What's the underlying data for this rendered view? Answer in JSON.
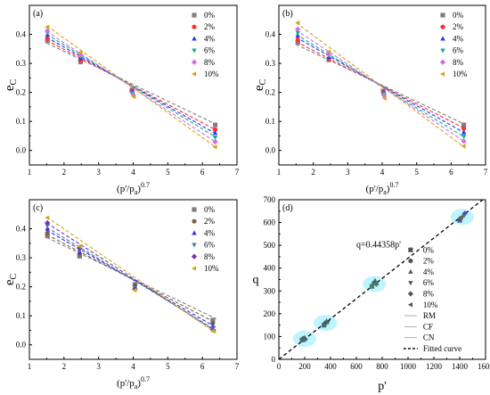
{
  "chart_data": [
    {
      "type": "scatter",
      "panel_label": "(a)",
      "xlabel_base": "(p'/p",
      "xlabel_sub": "a",
      "xlabel_close": ")",
      "xlabel_sup": "0.7",
      "ylabel_base": "e",
      "ylabel_sub": "C",
      "xlim": [
        1,
        7
      ],
      "ylim": [
        -0.05,
        0.5
      ],
      "xticks": [
        1,
        2,
        3,
        4,
        5,
        6,
        7
      ],
      "yticks": [
        0.0,
        0.1,
        0.2,
        0.3,
        0.4
      ],
      "legend_placement": "top-right",
      "series": [
        {
          "name": "0%",
          "marker": "square",
          "color": "#808080",
          "x": [
            1.52,
            2.48,
            3.96,
            6.37
          ],
          "y": [
            0.378,
            0.305,
            0.208,
            0.088
          ],
          "fit_x": [
            1.5,
            6.4
          ],
          "fit_y": [
            0.37,
            0.09
          ]
        },
        {
          "name": "2%",
          "marker": "circle",
          "color": "#ff3030",
          "x": [
            1.52,
            2.48,
            3.97,
            6.37
          ],
          "y": [
            0.385,
            0.31,
            0.205,
            0.072
          ],
          "fit_x": [
            1.5,
            6.4
          ],
          "fit_y": [
            0.38,
            0.07
          ]
        },
        {
          "name": "4%",
          "marker": "triangle-up",
          "color": "#3030ff",
          "x": [
            1.52,
            2.48,
            3.98,
            6.37
          ],
          "y": [
            0.398,
            0.318,
            0.203,
            0.06
          ],
          "fit_x": [
            1.5,
            6.4
          ],
          "fit_y": [
            0.39,
            0.057
          ]
        },
        {
          "name": "6%",
          "marker": "triangle-down",
          "color": "#10b090",
          "x": [
            1.52,
            2.48,
            3.98,
            6.37
          ],
          "y": [
            0.405,
            0.325,
            0.198,
            0.045
          ],
          "fit_x": [
            1.5,
            6.4
          ],
          "fit_y": [
            0.4,
            0.045
          ]
        },
        {
          "name": "8%",
          "marker": "diamond",
          "color": "#d070e0",
          "x": [
            1.52,
            2.48,
            4.0,
            6.37
          ],
          "y": [
            0.412,
            0.33,
            0.192,
            0.03
          ],
          "fit_x": [
            1.5,
            6.4
          ],
          "fit_y": [
            0.41,
            0.028
          ]
        },
        {
          "name": "10%",
          "marker": "triangle-left",
          "color": "#e0a020",
          "x": [
            1.52,
            2.48,
            4.02,
            6.37
          ],
          "y": [
            0.425,
            0.338,
            0.185,
            0.012
          ],
          "fit_x": [
            1.5,
            6.4
          ],
          "fit_y": [
            0.43,
            0.01
          ]
        }
      ]
    },
    {
      "type": "scatter",
      "panel_label": "(b)",
      "xlabel_base": "(p'/p",
      "xlabel_sub": "a",
      "xlabel_close": ")",
      "xlabel_sup": "0.7",
      "ylabel_base": "e",
      "ylabel_sub": "C",
      "xlim": [
        1,
        7
      ],
      "ylim": [
        -0.05,
        0.5
      ],
      "xticks": [
        1,
        2,
        3,
        4,
        5,
        6,
        7
      ],
      "yticks": [
        0.0,
        0.1,
        0.2,
        0.3,
        0.4
      ],
      "legend_placement": "top-right",
      "series": [
        {
          "name": "0%",
          "marker": "square",
          "color": "#808080",
          "x": [
            1.55,
            2.45,
            4.03,
            6.37
          ],
          "y": [
            0.372,
            0.312,
            0.205,
            0.088
          ],
          "fit_x": [
            1.5,
            6.4
          ],
          "fit_y": [
            0.365,
            0.09
          ]
        },
        {
          "name": "2%",
          "marker": "circle",
          "color": "#ff3030",
          "x": [
            1.55,
            2.45,
            4.03,
            6.37
          ],
          "y": [
            0.38,
            0.316,
            0.202,
            0.076
          ],
          "fit_x": [
            1.5,
            6.4
          ],
          "fit_y": [
            0.375,
            0.075
          ]
        },
        {
          "name": "4%",
          "marker": "triangle-up",
          "color": "#3030ff",
          "x": [
            1.55,
            2.45,
            4.05,
            6.37
          ],
          "y": [
            0.395,
            0.322,
            0.2,
            0.062
          ],
          "fit_x": [
            1.5,
            6.4
          ],
          "fit_y": [
            0.39,
            0.06
          ]
        },
        {
          "name": "6%",
          "marker": "triangle-down",
          "color": "#10b090",
          "x": [
            1.55,
            2.45,
            4.05,
            6.37
          ],
          "y": [
            0.405,
            0.328,
            0.196,
            0.048
          ],
          "fit_x": [
            1.5,
            6.4
          ],
          "fit_y": [
            0.4,
            0.045
          ]
        },
        {
          "name": "8%",
          "marker": "diamond",
          "color": "#d070e0",
          "x": [
            1.55,
            2.45,
            4.05,
            6.37
          ],
          "y": [
            0.418,
            0.333,
            0.19,
            0.032
          ],
          "fit_x": [
            1.5,
            6.4
          ],
          "fit_y": [
            0.415,
            0.03
          ]
        },
        {
          "name": "10%",
          "marker": "triangle-left",
          "color": "#e0a020",
          "x": [
            1.55,
            2.45,
            4.07,
            6.37
          ],
          "y": [
            0.44,
            0.34,
            0.18,
            0.015
          ],
          "fit_x": [
            1.5,
            6.4
          ],
          "fit_y": [
            0.44,
            0.01
          ]
        }
      ]
    },
    {
      "type": "scatter",
      "panel_label": "(c)",
      "xlabel_base": "(p'/p",
      "xlabel_sub": "a",
      "xlabel_close": ")",
      "xlabel_sup": "0.7",
      "ylabel_base": "e",
      "ylabel_sub": "C",
      "xlim": [
        1,
        7
      ],
      "ylim": [
        -0.05,
        0.5
      ],
      "xticks": [
        1,
        2,
        3,
        4,
        5,
        6,
        7
      ],
      "yticks": [
        0.0,
        0.1,
        0.2,
        0.3,
        0.4
      ],
      "legend_placement": "top-right",
      "series": [
        {
          "name": "0%",
          "marker": "square",
          "color": "#808080",
          "x": [
            1.52,
            2.45,
            4.05,
            6.3
          ],
          "y": [
            0.375,
            0.305,
            0.208,
            0.085
          ],
          "fit_x": [
            1.5,
            6.4
          ],
          "fit_y": [
            0.37,
            0.09
          ]
        },
        {
          "name": "2%",
          "marker": "circle",
          "color": "#806040",
          "x": [
            1.52,
            2.45,
            4.05,
            6.3
          ],
          "y": [
            0.385,
            0.312,
            0.205,
            0.075
          ],
          "fit_x": [
            1.5,
            6.4
          ],
          "fit_y": [
            0.38,
            0.075
          ]
        },
        {
          "name": "4%",
          "marker": "triangle-up",
          "color": "#3030ff",
          "x": [
            1.52,
            2.45,
            4.05,
            6.3
          ],
          "y": [
            0.4,
            0.32,
            0.2,
            0.065
          ],
          "fit_x": [
            1.5,
            6.4
          ],
          "fit_y": [
            0.395,
            0.06
          ]
        },
        {
          "name": "6%",
          "marker": "triangle-down",
          "color": "#3a8a9a",
          "x": [
            1.52,
            2.45,
            4.05,
            6.3
          ],
          "y": [
            0.41,
            0.326,
            0.197,
            0.058
          ],
          "fit_x": [
            1.5,
            6.4
          ],
          "fit_y": [
            0.405,
            0.05
          ]
        },
        {
          "name": "8%",
          "marker": "diamond",
          "color": "#8030b0",
          "x": [
            1.52,
            2.45,
            4.05,
            6.3
          ],
          "y": [
            0.42,
            0.333,
            0.192,
            0.052
          ],
          "fit_x": [
            1.5,
            6.4
          ],
          "fit_y": [
            0.42,
            0.045
          ]
        },
        {
          "name": "10%",
          "marker": "triangle-left",
          "color": "#c0b020",
          "x": [
            1.52,
            2.45,
            4.05,
            6.3
          ],
          "y": [
            0.438,
            0.34,
            0.188,
            0.048
          ],
          "fit_x": [
            1.5,
            6.4
          ],
          "fit_y": [
            0.44,
            0.04
          ]
        }
      ]
    },
    {
      "type": "scatter",
      "panel_label": "(d)",
      "xlabel": "p'",
      "ylabel": "q",
      "xlim": [
        0,
        1600
      ],
      "ylim": [
        0,
        700
      ],
      "xticks": [
        0,
        200,
        400,
        600,
        800,
        1000,
        1200,
        1400,
        1600
      ],
      "yticks": [
        0,
        100,
        200,
        300,
        400,
        500,
        600,
        700
      ],
      "annotation": "q=0.44358p'",
      "fit": {
        "name": "Fitted curve",
        "slope": 0.44358,
        "x": [
          0,
          1600
        ]
      },
      "highlight_color": "#a8f0ff",
      "highlight_regions": [
        [
          200,
          90
        ],
        [
          360,
          160
        ],
        [
          740,
          330
        ],
        [
          1420,
          625
        ]
      ],
      "series": [
        {
          "name": "0%",
          "marker": "square"
        },
        {
          "name": "2%",
          "marker": "circle"
        },
        {
          "name": "4%",
          "marker": "triangle-up"
        },
        {
          "name": "6%",
          "marker": "triangle-down"
        },
        {
          "name": "8%",
          "marker": "diamond"
        },
        {
          "name": "10%",
          "marker": "triangle-left"
        },
        {
          "name": "RM",
          "marker": "line"
        },
        {
          "name": "CF",
          "marker": "line"
        },
        {
          "name": "CN",
          "marker": "line"
        }
      ],
      "points": [
        {
          "x": 180,
          "y": 85,
          "marker": "square",
          "color": "#4a6a6a"
        },
        {
          "x": 190,
          "y": 92,
          "marker": "circle",
          "color": "#4a6a6a"
        },
        {
          "x": 200,
          "y": 95,
          "marker": "triangle-up",
          "color": "#3a5a5a"
        },
        {
          "x": 205,
          "y": 88,
          "marker": "diamond",
          "color": "#4a6a6a"
        },
        {
          "x": 350,
          "y": 150,
          "marker": "square",
          "color": "#4a6a6a"
        },
        {
          "x": 360,
          "y": 160,
          "marker": "circle",
          "color": "#4a6a6a"
        },
        {
          "x": 370,
          "y": 168,
          "marker": "triangle-up",
          "color": "#3a5a5a"
        },
        {
          "x": 380,
          "y": 162,
          "marker": "triangle-down",
          "color": "#4a6a6a"
        },
        {
          "x": 720,
          "y": 320,
          "marker": "square",
          "color": "#4a7a6a"
        },
        {
          "x": 735,
          "y": 335,
          "marker": "circle",
          "color": "#4a7a6a"
        },
        {
          "x": 745,
          "y": 345,
          "marker": "triangle-up",
          "color": "#3a6a5a"
        },
        {
          "x": 755,
          "y": 330,
          "marker": "diamond",
          "color": "#4a7a6a"
        },
        {
          "x": 1400,
          "y": 610,
          "marker": "square",
          "color": "#5050a0"
        },
        {
          "x": 1410,
          "y": 620,
          "marker": "circle",
          "color": "#606060"
        },
        {
          "x": 1425,
          "y": 630,
          "marker": "triangle-up",
          "color": "#4a7a6a"
        },
        {
          "x": 1440,
          "y": 640,
          "marker": "diamond",
          "color": "#5050a0"
        }
      ]
    }
  ]
}
